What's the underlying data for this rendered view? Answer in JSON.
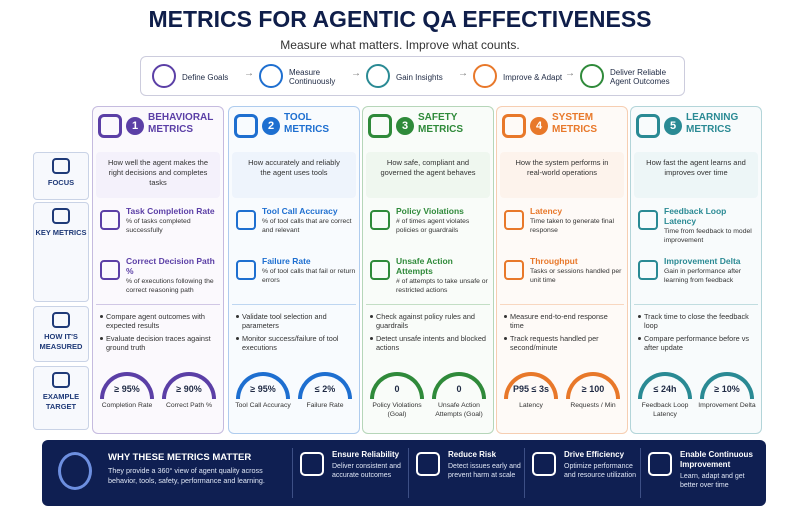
{
  "title": "METRICS FOR AGENTIC QA EFFECTIVENESS",
  "subtitle": "Measure what matters. Improve what counts.",
  "flow": [
    "Define Goals",
    "Measure Continuously",
    "Gain Insights",
    "Improve & Adapt",
    "Deliver Reliable Agent Outcomes"
  ],
  "row_labels": [
    "FOCUS",
    "KEY METRICS",
    "HOW IT'S MEASURED",
    "EXAMPLE TARGET"
  ],
  "columns": [
    {
      "number": "1",
      "title": "BEHAVIORAL METRICS",
      "focus": "How well the agent makes the right decisions and completes tasks",
      "metrics": [
        {
          "name": "Task Completion Rate",
          "desc": "% of tasks completed successfully"
        },
        {
          "name": "Correct Decision Path %",
          "desc": "% of executions following the correct reasoning path"
        }
      ],
      "measured": [
        "Compare agent outcomes with expected results",
        "Evaluate decision traces against ground truth"
      ],
      "targets": [
        {
          "value": "≥ 95%",
          "label": "Completion Rate"
        },
        {
          "value": "≥ 90%",
          "label": "Correct Path %"
        }
      ]
    },
    {
      "number": "2",
      "title": "TOOL METRICS",
      "focus": "How accurately and reliably the agent uses tools",
      "metrics": [
        {
          "name": "Tool Call Accuracy",
          "desc": "% of tool calls that are correct and relevant"
        },
        {
          "name": "Failure Rate",
          "desc": "% of tool calls that fail or return errors"
        }
      ],
      "measured": [
        "Validate tool selection and parameters",
        "Monitor success/failure of tool executions"
      ],
      "targets": [
        {
          "value": "≥ 95%",
          "label": "Tool Call Accuracy"
        },
        {
          "value": "≤ 2%",
          "label": "Failure Rate"
        }
      ]
    },
    {
      "number": "3",
      "title": "SAFETY METRICS",
      "focus": "How safe, compliant and governed the agent behaves",
      "metrics": [
        {
          "name": "Policy Violations",
          "desc": "# of times agent violates policies or guardrails"
        },
        {
          "name": "Unsafe Action Attempts",
          "desc": "# of attempts to take unsafe or restricted actions"
        }
      ],
      "measured": [
        "Check against policy rules and guardrails",
        "Detect unsafe intents and blocked actions"
      ],
      "targets": [
        {
          "value": "0",
          "label": "Policy Violations (Goal)"
        },
        {
          "value": "0",
          "label": "Unsafe Action Attempts (Goal)"
        }
      ]
    },
    {
      "number": "4",
      "title": "SYSTEM METRICS",
      "focus": "How the system performs in real-world operations",
      "metrics": [
        {
          "name": "Latency",
          "desc": "Time taken to generate final response"
        },
        {
          "name": "Throughput",
          "desc": "Tasks or sessions handled per unit time"
        }
      ],
      "measured": [
        "Measure end-to-end response time",
        "Track requests handled per second/minute"
      ],
      "targets": [
        {
          "value": "P95 ≤ 3s",
          "label": "Latency"
        },
        {
          "value": "≥ 100",
          "label": "Requests / Min"
        }
      ]
    },
    {
      "number": "5",
      "title": "LEARNING METRICS",
      "focus": "How fast the agent learns and improves over time",
      "metrics": [
        {
          "name": "Feedback Loop Latency",
          "desc": "Time from feedback to model improvement"
        },
        {
          "name": "Improvement Delta",
          "desc": "Gain in performance after learning from feedback"
        }
      ],
      "measured": [
        "Track time to close the feedback loop",
        "Compare performance before vs after update"
      ],
      "targets": [
        {
          "value": "≤ 24h",
          "label": "Feedback Loop Latency"
        },
        {
          "value": "≥ 10%",
          "label": "Improvement Delta"
        }
      ]
    }
  ],
  "footer": {
    "title": "WHY THESE METRICS MATTER",
    "text": "They provide a 360° view of agent quality across behavior, tools, safety, performance and learning.",
    "items": [
      {
        "name": "Ensure Reliability",
        "desc": "Deliver consistent and accurate outcomes"
      },
      {
        "name": "Reduce Risk",
        "desc": "Detect issues early and prevent harm at scale"
      },
      {
        "name": "Drive Efficiency",
        "desc": "Optimize performance and resource utilization"
      },
      {
        "name": "Enable Continuous Improvement",
        "desc": "Learn, adapt and get better over time"
      }
    ]
  }
}
